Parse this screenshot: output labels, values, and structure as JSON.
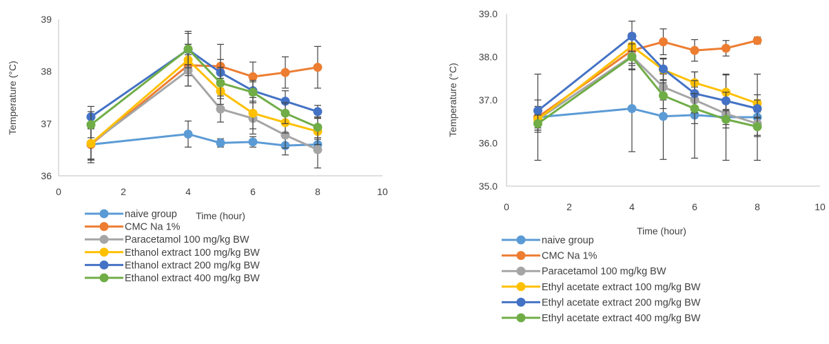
{
  "chart_data": [
    {
      "type": "line",
      "title": "",
      "xlabel": "Time (hour)",
      "ylabel": "Temperature (°C)",
      "xlim": [
        0,
        10
      ],
      "ylim": [
        36,
        39
      ],
      "x_ticks": [
        "0",
        "2",
        "4",
        "6",
        "8",
        "10"
      ],
      "y_ticks": [
        "36",
        "37",
        "38",
        "39"
      ],
      "grid": false,
      "legend_position": "bottom",
      "x": [
        1,
        4,
        5,
        6,
        7,
        8
      ],
      "series": [
        {
          "name": "naive group",
          "color": "#5B9BD5",
          "values": [
            36.6,
            36.8,
            36.63,
            36.65,
            36.58,
            36.6
          ],
          "errors": [
            0.35,
            0.25,
            0.08,
            0.1,
            0.18,
            0.1
          ]
        },
        {
          "name": "CMC Na 1%",
          "color": "#ED7D31",
          "values": [
            36.6,
            38.12,
            38.1,
            37.9,
            37.98,
            38.08
          ],
          "errors": [
            0.3,
            0.4,
            0.42,
            0.28,
            0.3,
            0.4
          ]
        },
        {
          "name": "Paracetamol 100 mg/kg BW",
          "color": "#A5A5A5",
          "values": [
            36.62,
            38.02,
            37.28,
            37.1,
            36.78,
            36.5
          ],
          "errors": [
            0.3,
            0.3,
            0.25,
            0.3,
            0.25,
            0.35
          ]
        },
        {
          "name": "Ethanol extract 100 mg/kg BW",
          "color": "#FFC000",
          "values": [
            36.62,
            38.22,
            37.62,
            37.2,
            37.02,
            36.85
          ],
          "errors": [
            0.3,
            0.3,
            0.25,
            0.3,
            0.2,
            0.25
          ]
        },
        {
          "name": "Ethanol extract 200 mg/kg BW",
          "color": "#4472C4",
          "values": [
            37.13,
            38.42,
            37.98,
            37.63,
            37.43,
            37.23
          ],
          "errors": [
            0.2,
            0.35,
            0.25,
            0.2,
            0.2,
            0.12
          ]
        },
        {
          "name": "Ethanol extract 400 mg/kg BW",
          "color": "#70AD47",
          "values": [
            36.98,
            38.43,
            37.78,
            37.6,
            37.2,
            36.93
          ],
          "errors": [
            0.25,
            0.3,
            0.3,
            0.2,
            0.2,
            0.2
          ]
        }
      ]
    },
    {
      "type": "line",
      "title": "",
      "xlabel": "Time (hour)",
      "ylabel": "Temperature (°C)",
      "xlim": [
        0,
        10
      ],
      "ylim": [
        35,
        39
      ],
      "x_ticks": [
        "0",
        "2",
        "4",
        "6",
        "8",
        "10"
      ],
      "y_ticks": [
        "35.0",
        "36.0",
        "37.0",
        "38.0",
        "39.0"
      ],
      "grid": false,
      "legend_position": "bottom",
      "x": [
        1,
        4,
        5,
        6,
        7,
        8
      ],
      "series": [
        {
          "name": "naive group",
          "color": "#5B9BD5",
          "values": [
            36.6,
            36.8,
            36.62,
            36.65,
            36.6,
            36.6
          ],
          "errors": [
            1.0,
            1.0,
            1.0,
            1.0,
            1.0,
            1.0
          ]
        },
        {
          "name": "CMC Na 1%",
          "color": "#ED7D31",
          "values": [
            36.6,
            38.15,
            38.35,
            38.15,
            38.2,
            38.38
          ],
          "errors": [
            0.25,
            0.3,
            0.3,
            0.25,
            0.18,
            0.08
          ]
        },
        {
          "name": "Paracetamol 100 mg/kg BW",
          "color": "#A5A5A5",
          "values": [
            36.55,
            38.02,
            37.3,
            37.0,
            36.68,
            36.45
          ],
          "errors": [
            0.25,
            0.3,
            0.3,
            0.3,
            0.25,
            0.3
          ]
        },
        {
          "name": "Ethyl acetate extract 100 mg/kg BW",
          "color": "#FFC000",
          "values": [
            36.55,
            38.25,
            37.7,
            37.4,
            37.18,
            36.92
          ],
          "errors": [
            0.25,
            0.3,
            0.25,
            0.25,
            0.4,
            0.2
          ]
        },
        {
          "name": "Ethyl acetate extract 200 mg/kg BW",
          "color": "#4472C4",
          "values": [
            36.75,
            38.48,
            37.72,
            37.15,
            36.98,
            36.8
          ],
          "errors": [
            0.25,
            0.35,
            0.25,
            0.3,
            0.2,
            0.2
          ]
        },
        {
          "name": "Ethyl acetate extract 400 mg/kg BW",
          "color": "#70AD47",
          "values": [
            36.45,
            38.0,
            37.1,
            36.8,
            36.55,
            36.38
          ],
          "errors": [
            0.2,
            0.3,
            0.3,
            0.35,
            0.2,
            0.2
          ]
        }
      ]
    }
  ]
}
